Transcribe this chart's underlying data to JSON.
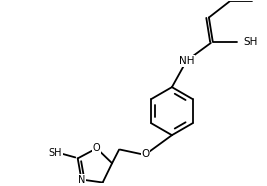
{
  "bg_color": "#ffffff",
  "line_color": "#000000",
  "lw": 1.3,
  "fs": 7.5,
  "fig_width": 2.67,
  "fig_height": 1.86,
  "dpi": 100,
  "xlim": [
    -0.5,
    4.5
  ],
  "ylim": [
    -2.0,
    1.8
  ]
}
